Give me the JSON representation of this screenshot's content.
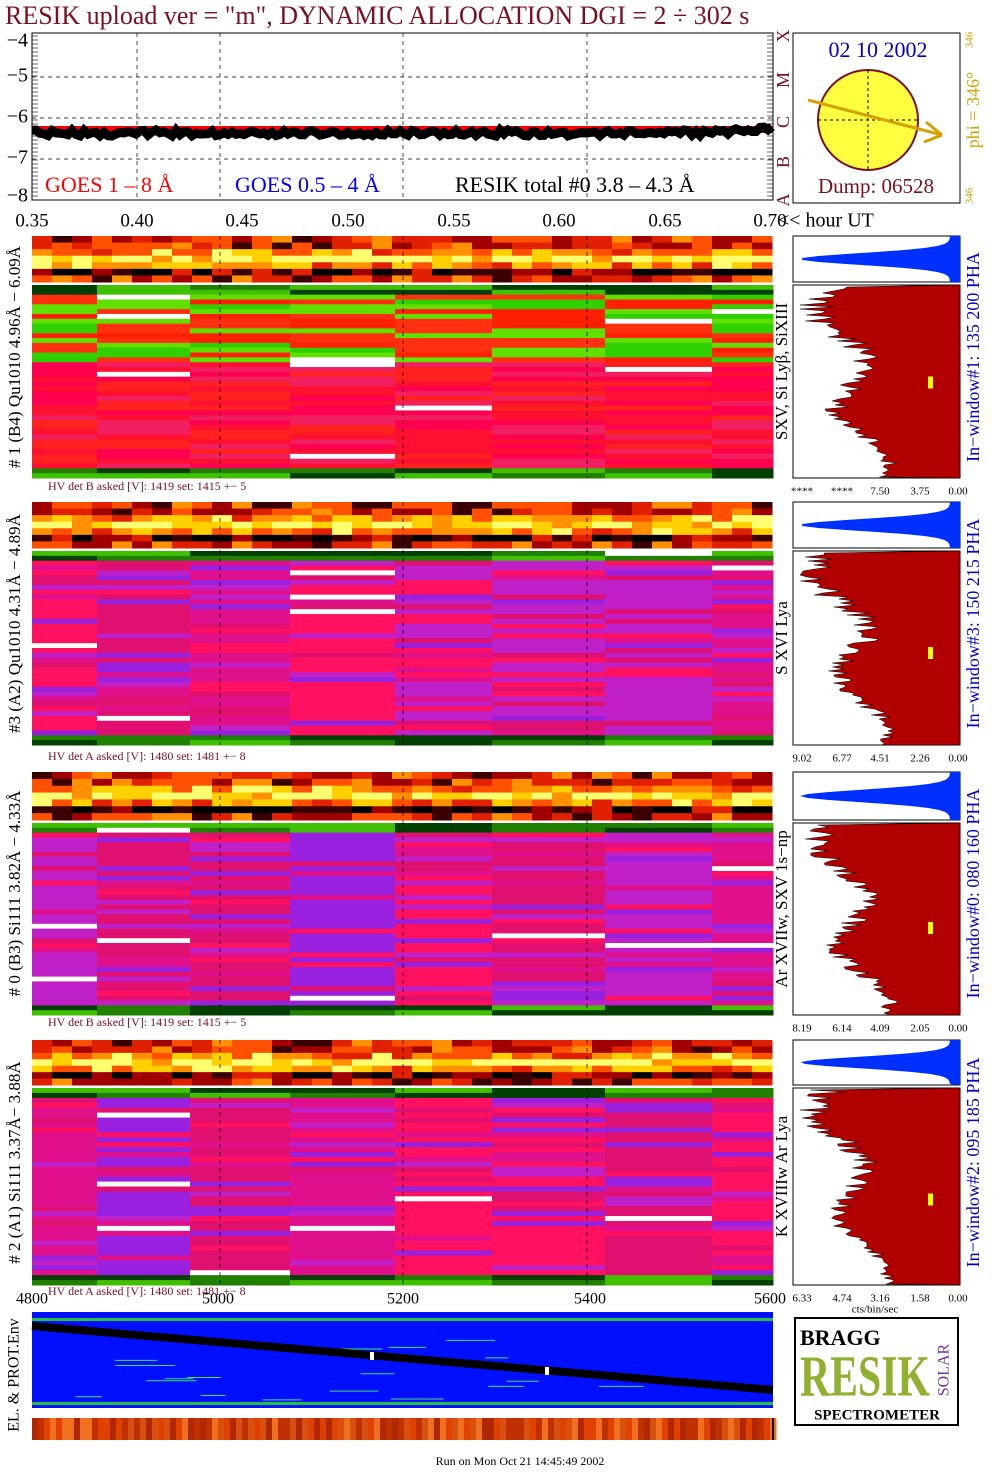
{
  "header": {
    "title": "RESIK upload ver = \"m\", DYNAMIC ALLOCATION  DGI =   2 ÷ 302 s"
  },
  "lightcurve": {
    "yticks": [
      "−4",
      "−5",
      "−6",
      "−7",
      "−8"
    ],
    "xticks": [
      "0.35",
      "0.40",
      "0.45",
      "0.50",
      "0.55",
      "0.60",
      "0.65",
      "0.70"
    ],
    "x_unit": "<< hour UT",
    "classes": [
      "X",
      "M",
      "C",
      "B",
      "A"
    ],
    "legend": [
      "GOES 1 – 8 Å",
      "GOES 0.5 – 4 Å",
      "RESIK total #0  3.8 – 4.3 Å"
    ]
  },
  "sun": {
    "date": "02 10 2002",
    "phi": "phi = 346°",
    "phi_small": "346",
    "corner": "346",
    "dump": "Dump: 06528"
  },
  "panels": [
    {
      "label": "# 1 (B4) Qu1010 4.96Å − 6.09Å",
      "lines": "SXV, Si Lyβ, SiXIII",
      "window": "In−window#1:  135 200 PHA",
      "hv": "HV det B asked [V]:  1419 set:  1415  +−   5",
      "ticks": [
        "****",
        "****",
        "7.50",
        "3.75",
        "0.00"
      ]
    },
    {
      "label": "#3 (A2) Qu1010  4.31Å − 4.89Å",
      "lines": "S XVI Lya",
      "window": "In−window#3:  150 215 PHA",
      "hv": "HV det A asked [V]:  1480 set:  1481  +−   8",
      "ticks": [
        "9.02",
        "6.77",
        "4.51",
        "2.26",
        "0.00"
      ]
    },
    {
      "label": "# 0 (B3) Si111  3.82Å − 4.33Å",
      "lines": "Ar XVIIw, SXV 1s−np",
      "window": "In−window#0:  080 160 PHA",
      "hv": "HV det B asked [V]:  1419 set:  1415  +−   5",
      "ticks": [
        "8.19",
        "6.14",
        "4.09",
        "2.05",
        "0.00"
      ]
    },
    {
      "label": "# 2 (A1) Si111  3.37Å− 3.88Å",
      "lines": "K XVIIIw  Ar Lya",
      "window": "In−window#2:  095 185 PHA",
      "hv": "HV det A asked [V]:  1480 set:  1481  +−   8",
      "ticks": [
        "6.33",
        "4.74",
        "3.16",
        "1.58",
        "0.00"
      ]
    }
  ],
  "bottom": {
    "xticks": [
      "4800",
      "5000",
      "5200",
      "5400",
      "5600"
    ],
    "cts_unit": "cts/bin/sec",
    "env_label": "EL. & PROT.Env",
    "logo": {
      "top": "BRAGG",
      "main": "RESIK",
      "side": "SOLAR",
      "bottom": "SPECTROMETER"
    },
    "footer": "Run on Mon Oct 21 14:45:49 2002"
  }
}
